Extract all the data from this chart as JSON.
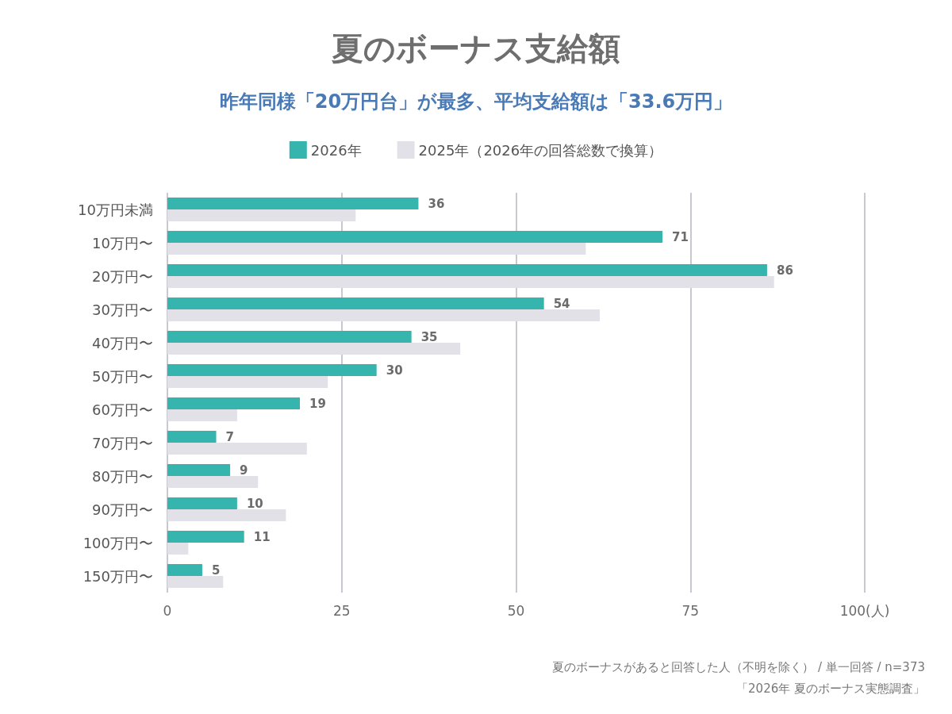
{
  "chart_data": {
    "type": "bar",
    "orientation": "horizontal",
    "title": "夏のボーナス支給額",
    "subtitle": "昨年同様「20万円台」が最多、平均支給額は「33.6万円」",
    "categories": [
      "10万円未満",
      "10万円〜",
      "20万円〜",
      "30万円〜",
      "40万円〜",
      "50万円〜",
      "60万円〜",
      "70万円〜",
      "80万円〜",
      "90万円〜",
      "100万円〜",
      "150万円〜"
    ],
    "series": [
      {
        "name": "2026年",
        "color": "#36b5ae",
        "values": [
          36,
          71,
          86,
          54,
          35,
          30,
          19,
          7,
          9,
          10,
          11,
          5
        ],
        "value_labels": [
          "36",
          "71",
          "86",
          "54",
          "35",
          "30",
          "19",
          "7",
          "9",
          "10",
          "11",
          "5"
        ]
      },
      {
        "name": "2025年（2026年の回答総数で換算）",
        "color": "#e3e1e8",
        "values": [
          27,
          60,
          87,
          62,
          42,
          23,
          10,
          20,
          13,
          17,
          3,
          8
        ]
      }
    ],
    "xlim": [
      0,
      100
    ],
    "xticks": [
      0,
      25,
      50,
      75,
      {
        "value": 100,
        "label": "100(人)"
      }
    ],
    "grid": "x",
    "legend": "top",
    "annotations": [
      "夏のボーナスがあると回答した人（不明を除く） / 単一回答 / n=373",
      "「2026年 夏のボーナス実態調査」"
    ]
  }
}
